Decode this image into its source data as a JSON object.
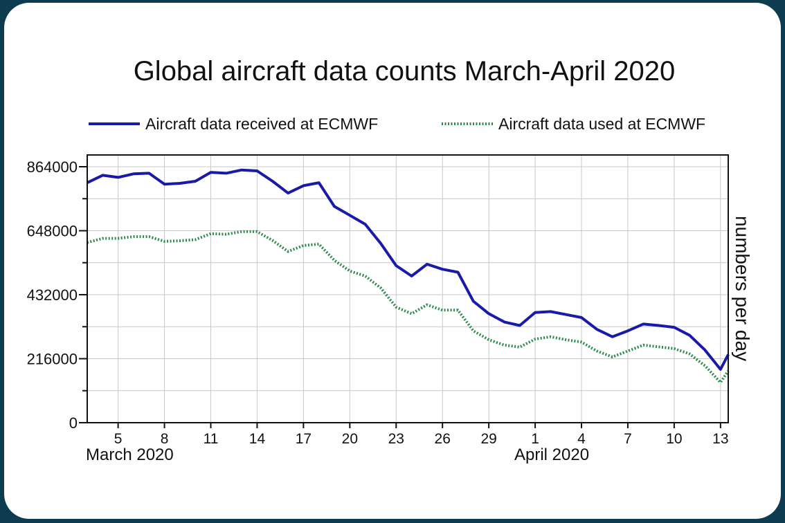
{
  "chart_data": {
    "type": "line",
    "title": "Global aircraft data counts March-April 2020",
    "ylabel": "numbers per day",
    "ylim": [
      0,
      864000
    ],
    "yticks": [
      0,
      216000,
      432000,
      648000,
      864000
    ],
    "ytick_labels": [
      "0",
      "216000",
      "432000",
      "648000",
      "864000"
    ],
    "x_tick_days": [
      5,
      8,
      11,
      14,
      17,
      20,
      23,
      26,
      29,
      32,
      35,
      38,
      41,
      44
    ],
    "x_tick_labels": [
      "5",
      "8",
      "11",
      "14",
      "17",
      "20",
      "23",
      "26",
      "29",
      "1",
      "4",
      "7",
      "10",
      "13"
    ],
    "highlight_ticks": [
      "8",
      "29"
    ],
    "highlight_color": "#a02020",
    "month_labels": [
      "March 2020",
      "April 2020"
    ],
    "xlim": [
      3,
      44.5
    ],
    "grid": true,
    "legend_position": "top",
    "series": [
      {
        "name": "Aircraft data received at ECMWF",
        "color": "#1a1aa8",
        "style": "solid",
        "x": [
          3,
          4,
          5,
          6,
          7,
          8,
          9,
          10,
          11,
          12,
          13,
          14,
          15,
          16,
          17,
          18,
          19,
          20,
          21,
          22,
          23,
          24,
          25,
          26,
          27,
          28,
          29,
          30,
          31,
          32,
          33,
          34,
          35,
          36,
          37,
          38,
          39,
          40,
          41,
          42,
          43,
          44,
          44.5
        ],
        "values": [
          810000,
          835000,
          828000,
          840000,
          842000,
          805000,
          808000,
          815000,
          845000,
          842000,
          853000,
          850000,
          815000,
          775000,
          800000,
          810000,
          730000,
          700000,
          670000,
          605000,
          530000,
          495000,
          535000,
          518000,
          508000,
          410000,
          368000,
          340000,
          328000,
          372000,
          375000,
          365000,
          355000,
          315000,
          290000,
          310000,
          333000,
          328000,
          322000,
          295000,
          245000,
          180000,
          230000
        ]
      },
      {
        "name": "Aircraft data used at ECMWF",
        "color": "#2a8a4a",
        "style": "dotted",
        "x": [
          3,
          4,
          5,
          6,
          7,
          8,
          9,
          10,
          11,
          12,
          13,
          14,
          15,
          16,
          17,
          18,
          19,
          20,
          21,
          22,
          23,
          24,
          25,
          26,
          27,
          28,
          29,
          30,
          31,
          32,
          33,
          34,
          35,
          36,
          37,
          38,
          39,
          40,
          41,
          42,
          43,
          44,
          44.5
        ],
        "values": [
          608000,
          622000,
          622000,
          628000,
          628000,
          612000,
          614000,
          618000,
          638000,
          636000,
          645000,
          645000,
          615000,
          578000,
          598000,
          603000,
          548000,
          512000,
          495000,
          455000,
          390000,
          368000,
          398000,
          380000,
          380000,
          310000,
          280000,
          262000,
          255000,
          282000,
          290000,
          280000,
          272000,
          242000,
          222000,
          242000,
          262000,
          256000,
          250000,
          232000,
          192000,
          136000,
          175000
        ]
      }
    ]
  }
}
